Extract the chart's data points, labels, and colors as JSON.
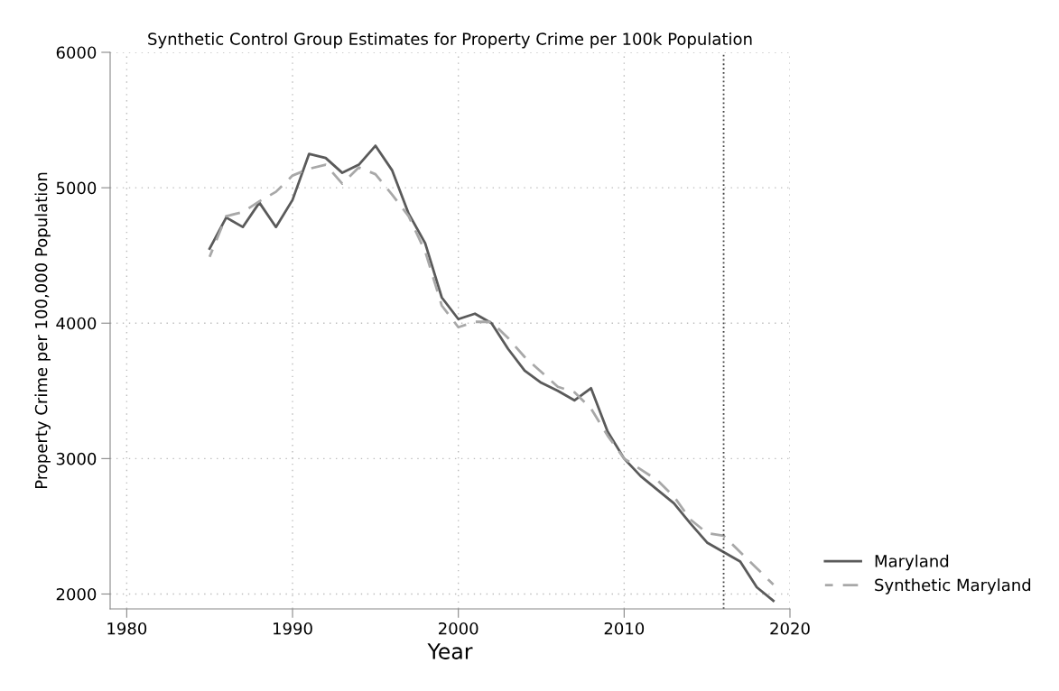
{
  "chart_data": {
    "type": "line",
    "title": "Synthetic Control Group Estimates for Property Crime per 100k Population",
    "xlabel": "Year",
    "ylabel": "Property Crime per 100,000 Population",
    "x": [
      1985,
      1986,
      1987,
      1988,
      1989,
      1990,
      1991,
      1992,
      1993,
      1994,
      1995,
      1996,
      1997,
      1998,
      1999,
      2000,
      2001,
      2002,
      2003,
      2004,
      2005,
      2006,
      2007,
      2008,
      2009,
      2010,
      2011,
      2012,
      2013,
      2014,
      2015,
      2016,
      2017,
      2018,
      2019
    ],
    "series": [
      {
        "name": "Maryland",
        "color": "#5a5a5a",
        "line_style": "solid",
        "values": [
          4550,
          4780,
          4710,
          4890,
          4710,
          4910,
          5250,
          5220,
          5110,
          5170,
          5310,
          5130,
          4810,
          4590,
          4190,
          4030,
          4070,
          4000,
          3810,
          3650,
          3560,
          3500,
          3430,
          3520,
          3200,
          3000,
          2870,
          2770,
          2670,
          2520,
          2380,
          2310,
          2240,
          2050,
          1950
        ]
      },
      {
        "name": "Synthetic Maryland",
        "color": "#a8a8a8",
        "line_style": "dashed",
        "values": [
          4490,
          4790,
          4820,
          4900,
          4970,
          5090,
          5140,
          5170,
          5030,
          5150,
          5100,
          4950,
          4790,
          4530,
          4130,
          3970,
          4010,
          4010,
          3890,
          3750,
          3640,
          3530,
          3490,
          3370,
          3170,
          3000,
          2920,
          2840,
          2720,
          2550,
          2450,
          2430,
          2310,
          2190,
          2070
        ]
      }
    ],
    "xlim": [
      1979,
      2020
    ],
    "ylim": [
      1890,
      6000
    ],
    "xticks": [
      1980,
      1990,
      2000,
      2010,
      2020
    ],
    "yticks": [
      2000,
      3000,
      4000,
      5000,
      6000
    ],
    "ref_lines": [
      {
        "axis": "x",
        "value": 2016,
        "color": "#404040",
        "line_style": "dotted"
      }
    ],
    "grid": true,
    "legend": "right",
    "marker": "none"
  }
}
